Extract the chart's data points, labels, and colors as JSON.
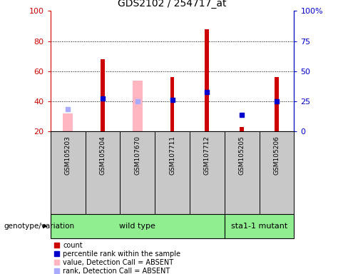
{
  "title": "GDS2102 / 254717_at",
  "samples": [
    "GSM105203",
    "GSM105204",
    "GSM107670",
    "GSM107711",
    "GSM107712",
    "GSM105205",
    "GSM105206"
  ],
  "red_bar_values": [
    null,
    68,
    null,
    56,
    88,
    23,
    56
  ],
  "pink_bar_values": [
    32,
    null,
    54,
    null,
    null,
    null,
    null
  ],
  "blue_square_values": [
    null,
    42,
    null,
    41,
    46,
    31,
    40
  ],
  "light_blue_square_values": [
    35,
    null,
    40,
    null,
    null,
    null,
    null
  ],
  "ylim_left": [
    20,
    100
  ],
  "ylim_right": [
    0,
    100
  ],
  "yticks_left": [
    20,
    40,
    60,
    80,
    100
  ],
  "yticks_right": [
    0,
    25,
    50,
    75,
    100
  ],
  "ytick_labels_left": [
    "20",
    "40",
    "60",
    "80",
    "100"
  ],
  "ytick_labels_right": [
    "0",
    "25",
    "50",
    "75",
    "100%"
  ],
  "red_color": "#CC0000",
  "pink_color": "#FFB6C1",
  "blue_color": "#0000CC",
  "light_blue_color": "#AAAAFF",
  "sample_bg_color": "#C8C8C8",
  "wild_type_color": "#90EE90",
  "mutant_color": "#66DD66",
  "wild_type_label": "wild type",
  "mutant_label": "sta1-1 mutant",
  "genotype_label": "genotype/variation",
  "legend_items": [
    {
      "label": "count",
      "color": "#CC0000"
    },
    {
      "label": "percentile rank within the sample",
      "color": "#0000CC"
    },
    {
      "label": "value, Detection Call = ABSENT",
      "color": "#FFB6C1"
    },
    {
      "label": "rank, Detection Call = ABSENT",
      "color": "#AAAAFF"
    }
  ]
}
